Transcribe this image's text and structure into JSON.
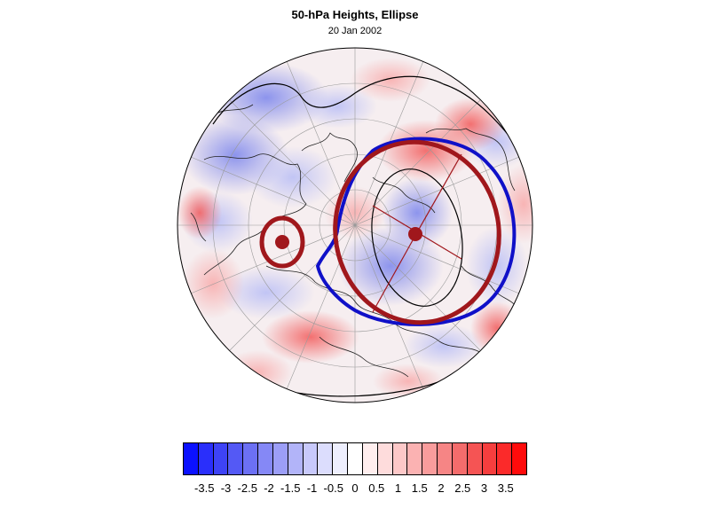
{
  "title": "50-hPa Heights, Ellipse",
  "subtitle": "20 Jan 2002",
  "map": {
    "projection": "polar-stereographic",
    "field_colors": {
      "positive": "#e8393c",
      "negative": "#4a5de0",
      "neutral": "#ffffff"
    },
    "ellipse_color": "#a0171c",
    "contour_color": "#1010c8",
    "vortex_centers": 2
  },
  "colorbar": {
    "colors": [
      "#0b11ff",
      "#2a2ffb",
      "#3e43f6",
      "#5459f5",
      "#6c70f4",
      "#8588f6",
      "#9c9ef7",
      "#b2b4f9",
      "#c8c9fb",
      "#dcddfd",
      "#eeeffe",
      "#ffffff",
      "#ffeeee",
      "#fedcdc",
      "#fdc8c8",
      "#fbb2b2",
      "#f99c9c",
      "#f68585",
      "#f46c6c",
      "#f55454",
      "#f63e3e",
      "#fb2a2a",
      "#ff0b0b"
    ],
    "labels": [
      "-3.5",
      "-3",
      "-2.5",
      "-2",
      "-1.5",
      "-1",
      "-0.5",
      "0",
      "0.5",
      "1",
      "1.5",
      "2",
      "2.5",
      "3",
      "3.5"
    ]
  }
}
